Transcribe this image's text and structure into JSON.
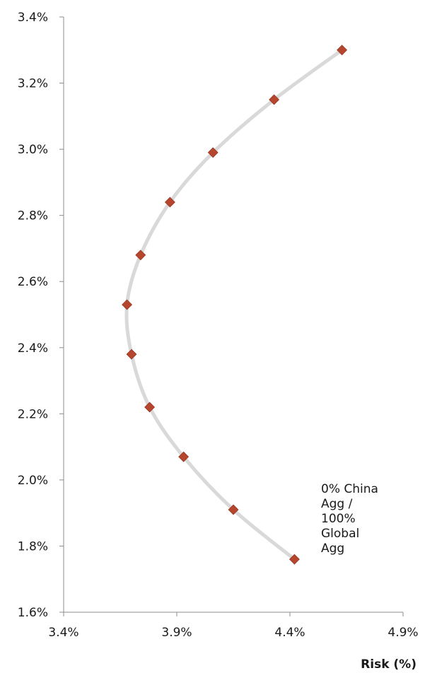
{
  "chart_data": {
    "type": "scatter",
    "title": "",
    "xlabel": "Risk (%)",
    "ylabel": "",
    "xlim": [
      3.4,
      4.9
    ],
    "ylim": [
      1.6,
      3.4
    ],
    "x_ticks": [
      "3.4%",
      "3.9%",
      "4.4%",
      "4.9%"
    ],
    "y_ticks": [
      "1.6%",
      "1.8%",
      "2.0%",
      "2.2%",
      "2.4%",
      "2.6%",
      "2.8%",
      "3.0%",
      "3.2%",
      "3.4%"
    ],
    "series": [
      {
        "points": [
          {
            "x": 4.42,
            "y": 1.76
          },
          {
            "x": 4.15,
            "y": 1.91
          },
          {
            "x": 3.93,
            "y": 2.07
          },
          {
            "x": 3.78,
            "y": 2.22
          },
          {
            "x": 3.7,
            "y": 2.38
          },
          {
            "x": 3.68,
            "y": 2.53
          },
          {
            "x": 3.74,
            "y": 2.68
          },
          {
            "x": 3.87,
            "y": 2.84
          },
          {
            "x": 4.06,
            "y": 2.99
          },
          {
            "x": 4.33,
            "y": 3.15
          },
          {
            "x": 4.63,
            "y": 3.3
          }
        ],
        "line_color": "#d9d9d9",
        "marker_color": "#b5452d",
        "marker": "diamond"
      }
    ],
    "annotation": "0% China\nAgg /\n100%\nGlobal\nAgg",
    "grid": false
  }
}
